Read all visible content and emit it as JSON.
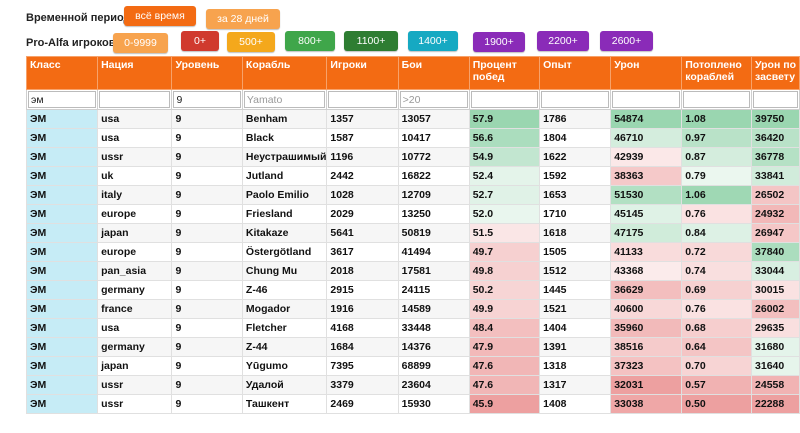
{
  "filters": {
    "period_label": "Временной период:",
    "period_buttons": [
      {
        "label": "всё время",
        "color": "#f36b13"
      },
      {
        "label": "за 28 дней",
        "color": "#f7a34e"
      }
    ],
    "pro_label": "Pro-Alfa игроков:",
    "pro_buttons": [
      {
        "label": "0-9999",
        "color": "#f7a34e"
      },
      {
        "label": "0+",
        "color": "#d03a2e"
      },
      {
        "label": "500+",
        "color": "#f4a81c"
      },
      {
        "label": "800+",
        "color": "#3fa64a"
      },
      {
        "label": "1100+",
        "color": "#2e7d32"
      },
      {
        "label": "1400+",
        "color": "#16a9c2"
      },
      {
        "label": "1900+",
        "color": "#8a2bb8"
      },
      {
        "label": "2200+",
        "color": "#8a2bb8"
      },
      {
        "label": "2600+",
        "color": "#8a2bb8"
      }
    ]
  },
  "table": {
    "columns": [
      "Класс",
      "Нация",
      "Уровень",
      "Корабль",
      "Игроки",
      "Бои",
      "Процент побед",
      "Опыт",
      "Урон",
      "Потоплено кораблей",
      "Урон по засвету"
    ],
    "filter_values": [
      "эм",
      "",
      "9",
      "",
      "",
      "",
      "",
      "",
      "",
      "",
      ""
    ],
    "filter_placeholders": [
      "",
      "",
      "",
      "Yamato",
      "",
      ">20",
      "",
      "",
      "",
      "",
      ""
    ],
    "rows": [
      [
        "ЭМ",
        "usa",
        "9",
        "Benham",
        "1357",
        "13057",
        "57.9",
        "1786",
        "54874",
        "1.08",
        "39750"
      ],
      [
        "ЭМ",
        "usa",
        "9",
        "Black",
        "1587",
        "10417",
        "56.6",
        "1804",
        "46710",
        "0.97",
        "36420"
      ],
      [
        "ЭМ",
        "ussr",
        "9",
        "Неустрашимый",
        "1196",
        "10772",
        "54.9",
        "1622",
        "42939",
        "0.87",
        "36778"
      ],
      [
        "ЭМ",
        "uk",
        "9",
        "Jutland",
        "2442",
        "16822",
        "52.4",
        "1592",
        "38363",
        "0.79",
        "33841"
      ],
      [
        "ЭМ",
        "italy",
        "9",
        "Paolo Emilio",
        "1028",
        "12709",
        "52.7",
        "1653",
        "51530",
        "1.06",
        "26502"
      ],
      [
        "ЭМ",
        "europe",
        "9",
        "Friesland",
        "2029",
        "13250",
        "52.0",
        "1710",
        "45145",
        "0.76",
        "24932"
      ],
      [
        "ЭМ",
        "japan",
        "9",
        "Kitakaze",
        "5641",
        "50819",
        "51.5",
        "1618",
        "47175",
        "0.84",
        "26947"
      ],
      [
        "ЭМ",
        "europe",
        "9",
        "Östergötland",
        "3617",
        "41494",
        "49.7",
        "1505",
        "41133",
        "0.72",
        "37840"
      ],
      [
        "ЭМ",
        "pan_asia",
        "9",
        "Chung Mu",
        "2018",
        "17581",
        "49.8",
        "1512",
        "43368",
        "0.74",
        "33044"
      ],
      [
        "ЭМ",
        "germany",
        "9",
        "Z-46",
        "2915",
        "24115",
        "50.2",
        "1445",
        "36629",
        "0.69",
        "30015"
      ],
      [
        "ЭМ",
        "france",
        "9",
        "Mogador",
        "1916",
        "14589",
        "49.9",
        "1521",
        "40600",
        "0.76",
        "26002"
      ],
      [
        "ЭМ",
        "usa",
        "9",
        "Fletcher",
        "4168",
        "33448",
        "48.4",
        "1404",
        "35960",
        "0.68",
        "29635"
      ],
      [
        "ЭМ",
        "germany",
        "9",
        "Z-44",
        "1684",
        "14376",
        "47.9",
        "1391",
        "38516",
        "0.64",
        "31680"
      ],
      [
        "ЭМ",
        "japan",
        "9",
        "Yūgumo",
        "7395",
        "68899",
        "47.6",
        "1318",
        "37323",
        "0.70",
        "31640"
      ],
      [
        "ЭМ",
        "ussr",
        "9",
        "Удалой",
        "3379",
        "23604",
        "47.6",
        "1317",
        "32031",
        "0.57",
        "24558"
      ],
      [
        "ЭМ",
        "ussr",
        "9",
        "Ташкент",
        "2469",
        "15930",
        "45.9",
        "1408",
        "33038",
        "0.50",
        "22288"
      ]
    ]
  }
}
